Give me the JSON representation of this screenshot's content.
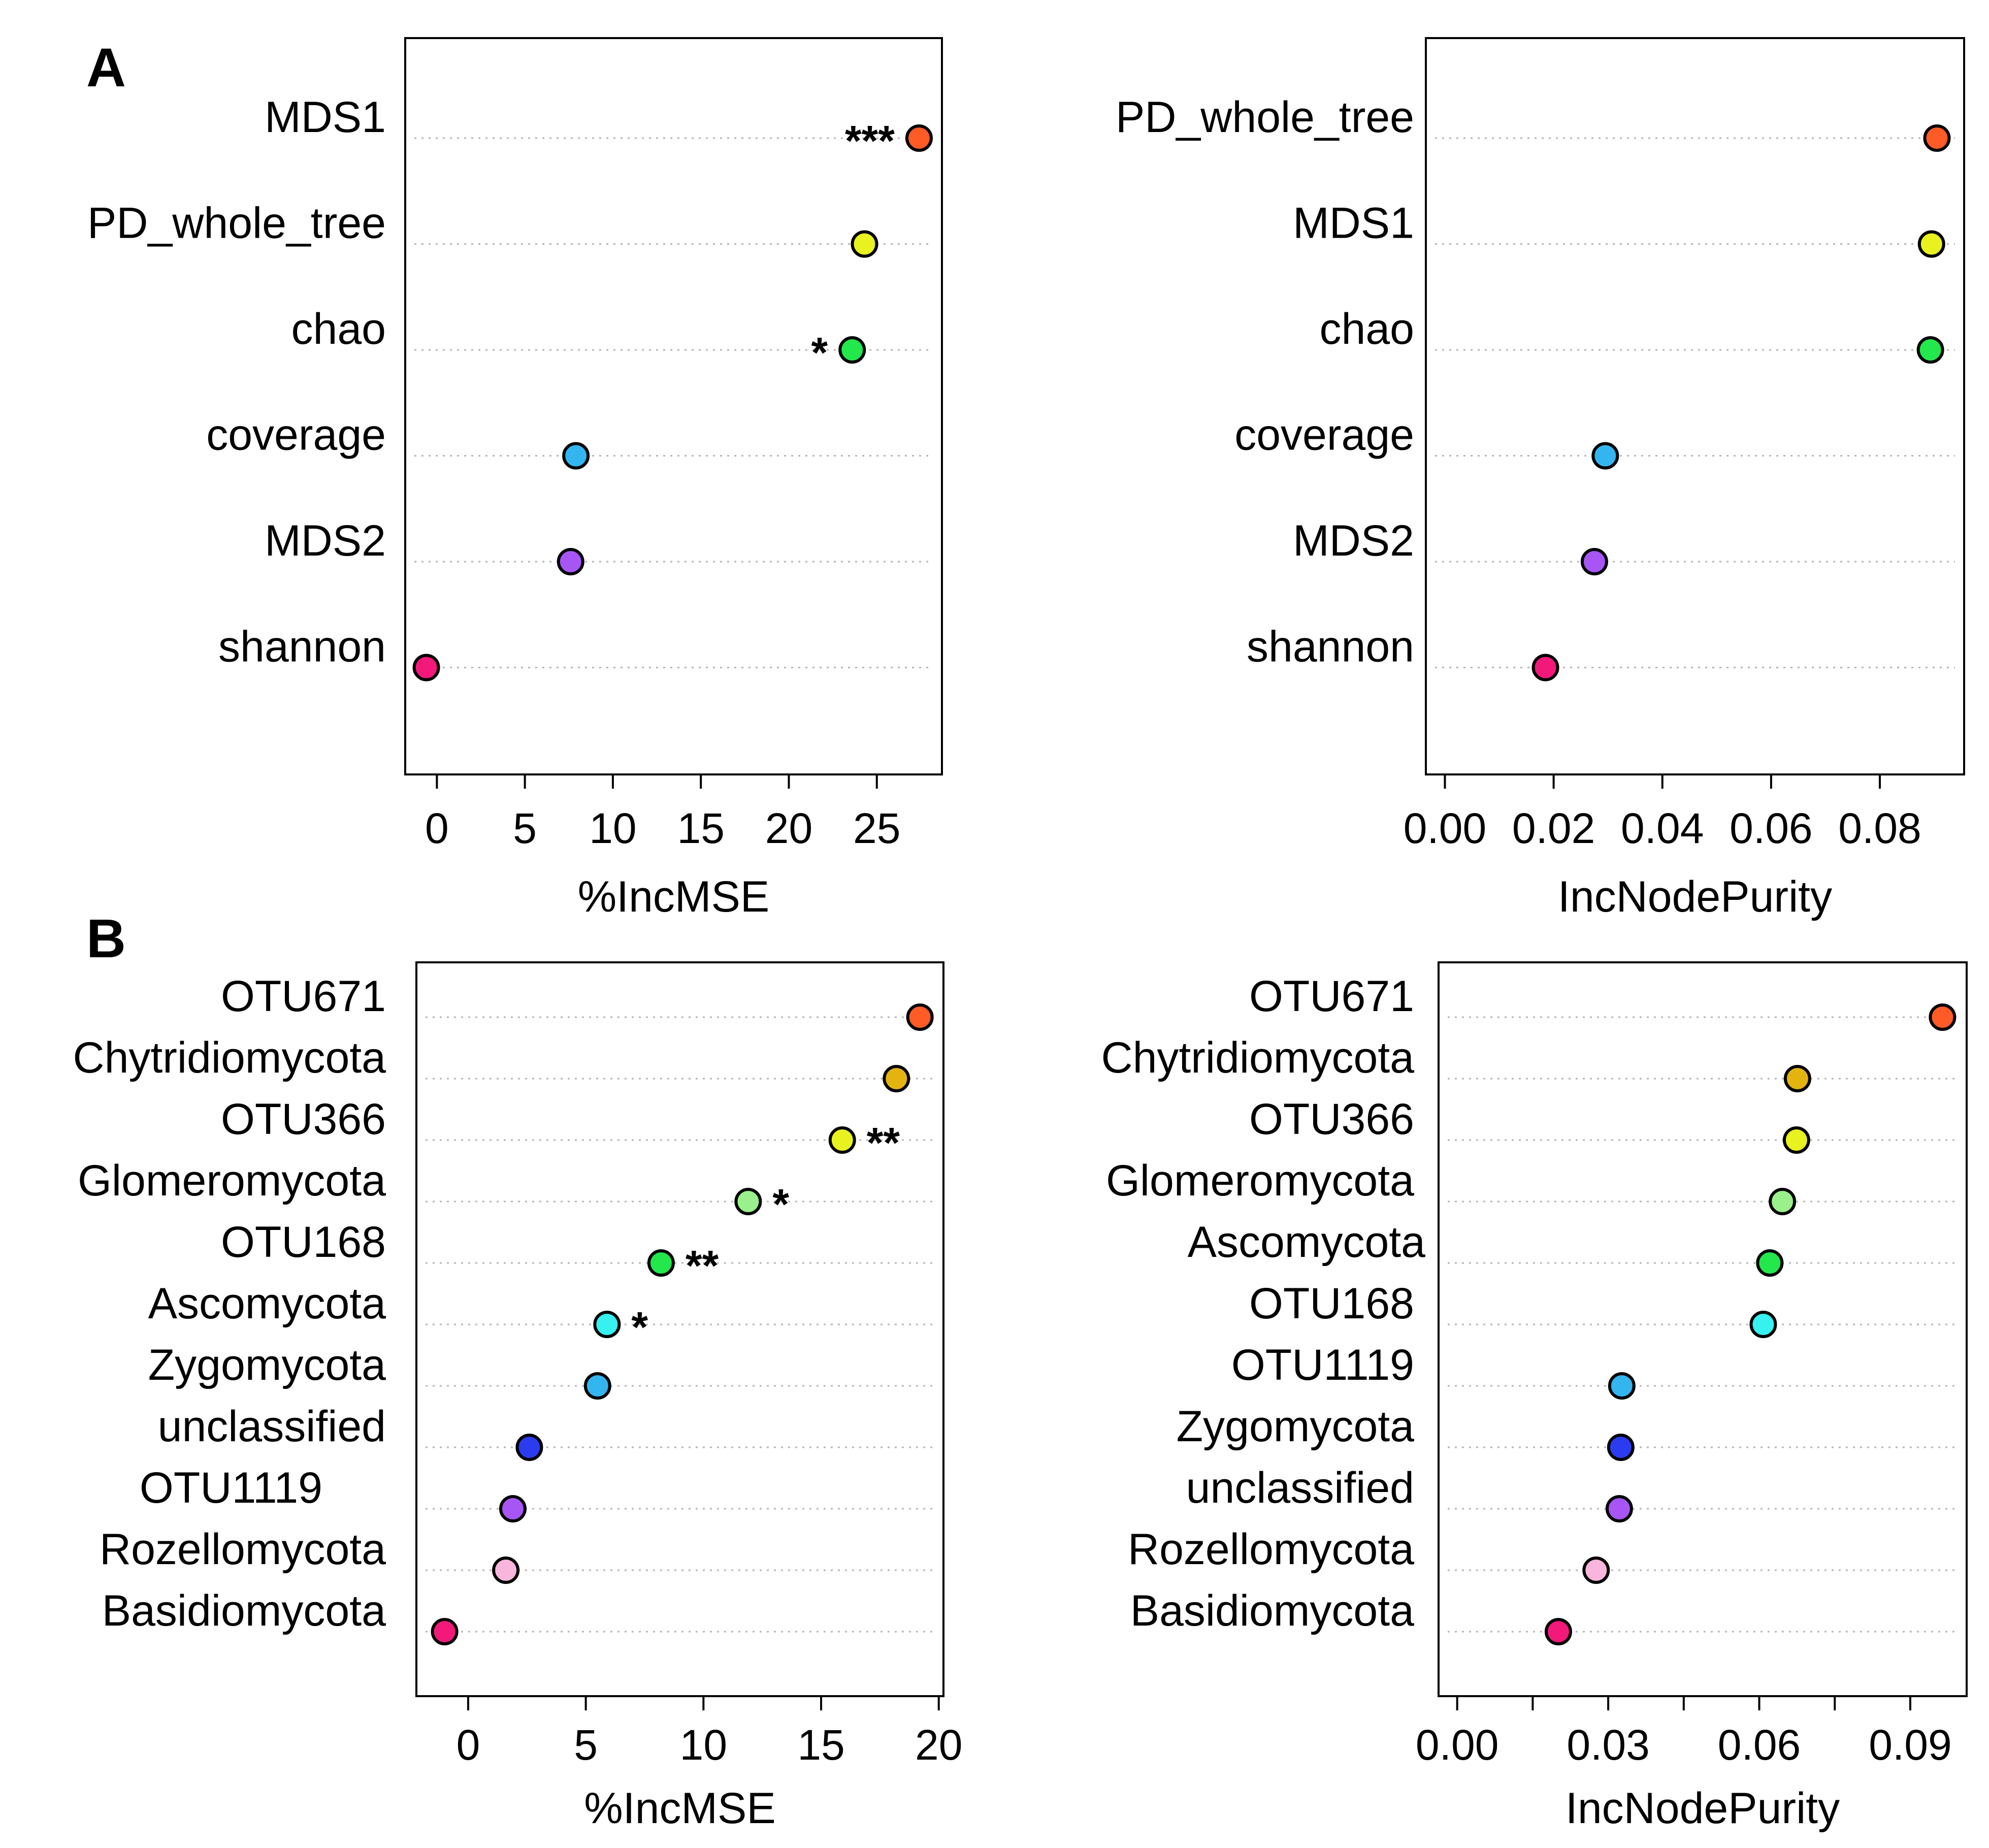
{
  "panel_labels": [
    "A",
    "B"
  ],
  "chart_data": [
    {
      "type": "scatter",
      "title": "",
      "xlabel": "%IncMSE",
      "ylabel": "",
      "xlim": [
        -1.8,
        28.7
      ],
      "xticks": [
        0,
        5,
        10,
        15,
        20,
        25
      ],
      "xtick_labels": [
        "0",
        "5",
        "10",
        "15",
        "20",
        "25"
      ],
      "grid": "horizontal dotted",
      "categories": [
        "MDS1",
        "PD_whole_tree",
        "chao",
        "coverage",
        "MDS2",
        "shannon"
      ],
      "values": [
        27.4,
        24.3,
        23.6,
        7.9,
        7.6,
        -0.6
      ],
      "colors": [
        "#fe5b26",
        "#e8f21e",
        "#22e84c",
        "#33b5f0",
        "#a756f5",
        "#f3197a"
      ],
      "annotations": [
        "***",
        "",
        "*",
        "",
        "",
        ""
      ]
    },
    {
      "type": "scatter",
      "title": "",
      "xlabel": "IncNodePurity",
      "ylabel": "",
      "xlim": [
        -0.0035,
        0.0955
      ],
      "xticks": [
        0.0,
        0.02,
        0.04,
        0.06,
        0.08
      ],
      "xtick_labels": [
        "0.00",
        "0.02",
        "0.04",
        "0.06",
        "0.08"
      ],
      "grid": "horizontal dotted",
      "categories": [
        "PD_whole_tree",
        "MDS1",
        "chao",
        "coverage",
        "MDS2",
        "shannon"
      ],
      "values": [
        0.0905,
        0.0895,
        0.0893,
        0.0295,
        0.0275,
        0.0185
      ],
      "colors": [
        "#fe5b26",
        "#e8f21e",
        "#22e84c",
        "#33b5f0",
        "#a756f5",
        "#f3197a"
      ],
      "annotations": [
        "",
        "",
        "",
        "",
        "",
        ""
      ]
    },
    {
      "type": "scatter",
      "title": "",
      "xlabel": "%IncMSE",
      "ylabel": "",
      "xlim": [
        -2.2,
        20.2
      ],
      "xticks": [
        0,
        5,
        10,
        15,
        20
      ],
      "xtick_labels": [
        "0",
        "5",
        "10",
        "15",
        "20"
      ],
      "grid": "horizontal dotted",
      "categories": [
        "OTU671",
        "Chytridiomycota",
        "OTU366",
        "Glomeromycota",
        "OTU168",
        "Ascomycota",
        "Zygomycota",
        "unclassified",
        "OTU1119",
        "Rozellomycota",
        "Basidiomycota"
      ],
      "values": [
        19.2,
        18.2,
        15.9,
        11.9,
        8.2,
        5.9,
        5.5,
        2.6,
        1.9,
        1.6,
        -1.0
      ],
      "colors": [
        "#fe5b26",
        "#e3b40f",
        "#e8f21e",
        "#9af08a",
        "#22e84c",
        "#37f0f0",
        "#33b5f0",
        "#2b3cf0",
        "#a756f5",
        "#f8b6dc",
        "#f3197a"
      ],
      "annotations": [
        "",
        "",
        "**",
        "*",
        "**",
        "*",
        "",
        "",
        "",
        "",
        ""
      ]
    },
    {
      "type": "scatter",
      "title": "",
      "xlabel": "IncNodePurity",
      "ylabel": "",
      "xlim": [
        -0.0037,
        0.1012
      ],
      "xticks": [
        0.0,
        0.03,
        0.06,
        0.09
      ],
      "xtick_labels": [
        "0.00",
        "0.03",
        "0.06",
        "0.09"
      ],
      "grid": "horizontal dotted",
      "categories": [
        "OTU671",
        "Chytridiomycota",
        "OTU366",
        "Glomeromycota",
        "Ascomycota",
        "OTU168",
        "OTU1119",
        "Zygomycota",
        "unclassified",
        "Rozellomycota",
        "Basidiomycota"
      ],
      "values": [
        0.0964,
        0.0676,
        0.0674,
        0.0646,
        0.0621,
        0.0608,
        0.0327,
        0.0325,
        0.0322,
        0.0276,
        0.0201
      ],
      "colors": [
        "#fe5b26",
        "#e3b40f",
        "#e8f21e",
        "#9af08a",
        "#22e84c",
        "#37f0f0",
        "#33b5f0",
        "#2b3cf0",
        "#a756f5",
        "#f8b6dc",
        "#f3197a"
      ],
      "annotations": [
        "",
        "",
        "",
        "",
        "",
        "",
        "",
        "",
        "",
        "",
        ""
      ]
    }
  ]
}
